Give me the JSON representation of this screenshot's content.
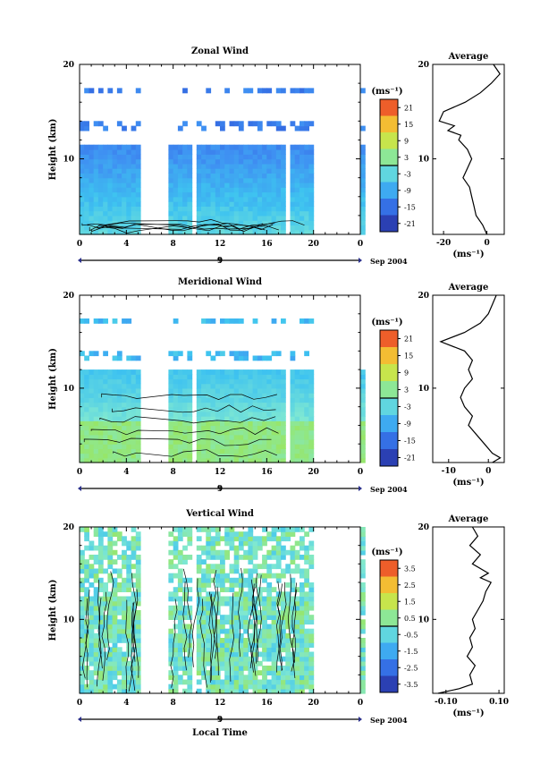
{
  "chart_data": [
    {
      "type": "heatmap",
      "title": "Zonal Wind",
      "ylabel": "Height (km)",
      "xlim": [
        0,
        24
      ],
      "ylim": [
        2,
        20
      ],
      "x_ticks": [
        "0",
        "4",
        "8",
        "12",
        "16",
        "20",
        "0"
      ],
      "y_ticks": [
        "10",
        "20"
      ],
      "day_label": "9",
      "month_label": "Sep 2004",
      "colorbar": {
        "unit": "(ms⁻¹)",
        "range": [
          -24,
          24
        ],
        "zero_line": 0,
        "ticks": [
          "21",
          "15",
          "9",
          "3",
          "-3",
          "-9",
          "-15",
          "-21"
        ]
      },
      "data_gaps_hours": [
        [
          5.2,
          7.8
        ],
        [
          9.8,
          10.1
        ],
        [
          17.6,
          18.0
        ],
        [
          19.8,
          24
        ]
      ],
      "average_profile": {
        "title": "Average",
        "xlabel": "(ms⁻¹)",
        "xlim": [
          -25,
          8
        ],
        "x_ticks": [
          "-20",
          "0"
        ],
        "y_ticks": [
          "10",
          "20"
        ],
        "heights_km": [
          2,
          3,
          4,
          5,
          6,
          7,
          8,
          9,
          10,
          11,
          12,
          12.5,
          13,
          13.5,
          14,
          15,
          16,
          17,
          18,
          19,
          20
        ],
        "values": [
          0,
          -2,
          -5,
          -6,
          -7,
          -8,
          -11,
          -9,
          -7,
          -9,
          -13,
          -12,
          -18,
          -15,
          -22,
          -20,
          -10,
          -3,
          2,
          6,
          3
        ]
      }
    },
    {
      "type": "heatmap",
      "title": "Meridional Wind",
      "ylabel": "Height (km)",
      "xlim": [
        0,
        24
      ],
      "ylim": [
        2,
        20
      ],
      "x_ticks": [
        "0",
        "4",
        "8",
        "12",
        "16",
        "20",
        "0"
      ],
      "y_ticks": [
        "10",
        "20"
      ],
      "day_label": "9",
      "month_label": "Sep 2004",
      "colorbar": {
        "unit": "(ms⁻¹)",
        "range": [
          -24,
          24
        ],
        "zero_line": 0,
        "ticks": [
          "21",
          "15",
          "9",
          "3",
          "-3",
          "-9",
          "-15",
          "-21"
        ]
      },
      "data_gaps_hours": [
        [
          5.2,
          7.8
        ],
        [
          9.8,
          10.1
        ],
        [
          17.6,
          18.0
        ],
        [
          19.8,
          24
        ]
      ],
      "average_profile": {
        "title": "Average",
        "xlabel": "(ms⁻¹)",
        "xlim": [
          -14,
          4
        ],
        "x_ticks": [
          "-10",
          "0"
        ],
        "y_ticks": [
          "10",
          "20"
        ],
        "heights_km": [
          2,
          2.5,
          3,
          4,
          5,
          6,
          7,
          8,
          9,
          10,
          11,
          12,
          13,
          14,
          15,
          16,
          17,
          18,
          19,
          20
        ],
        "values": [
          1,
          3,
          1,
          -1,
          -3,
          -5,
          -4,
          -6,
          -7,
          -6,
          -4,
          -5,
          -4,
          -6,
          -12,
          -6,
          -2,
          0,
          1,
          2
        ]
      }
    },
    {
      "type": "heatmap",
      "title": "Vertical Wind",
      "ylabel": "Height (km)",
      "xlabel": "Local Time",
      "xlim": [
        0,
        24
      ],
      "ylim": [
        2,
        20
      ],
      "x_ticks": [
        "0",
        "4",
        "8",
        "12",
        "16",
        "20",
        "0"
      ],
      "y_ticks": [
        "10",
        "20"
      ],
      "day_label": "9",
      "month_label": "Sep 2004",
      "colorbar": {
        "unit": "(ms⁻¹)",
        "range": [
          -4,
          4
        ],
        "zero_line": 0,
        "ticks": [
          "3.5",
          "2.5",
          "1.5",
          "0.5",
          "-0.5",
          "-1.5",
          "-2.5",
          "-3.5"
        ]
      },
      "data_gaps_hours": [
        [
          5.2,
          7.8
        ],
        [
          9.8,
          10.1
        ],
        [
          19.8,
          24
        ]
      ],
      "average_profile": {
        "title": "Average",
        "xlabel": "(ms⁻¹)",
        "xlim": [
          -0.15,
          0.12
        ],
        "x_ticks": [
          "-0.10",
          "0.10"
        ],
        "y_ticks": [
          "10",
          "20"
        ],
        "heights_km": [
          2,
          2.5,
          3,
          4,
          5,
          6,
          7,
          8,
          9,
          10,
          11,
          12,
          13,
          14,
          14.5,
          15,
          16,
          17,
          18,
          19,
          20
        ],
        "values": [
          -0.13,
          -0.05,
          0.0,
          -0.01,
          0.01,
          -0.02,
          0.0,
          -0.01,
          0.01,
          0.0,
          0.02,
          0.04,
          0.05,
          0.07,
          0.03,
          0.06,
          0.0,
          0.03,
          -0.01,
          0.02,
          0.0
        ]
      }
    }
  ]
}
